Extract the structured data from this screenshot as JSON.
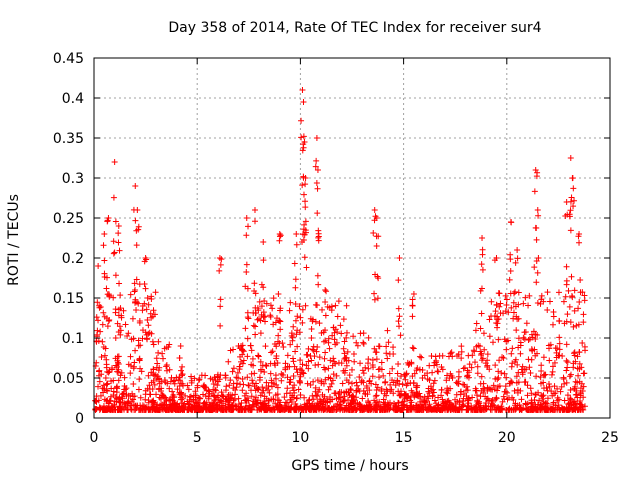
{
  "chart_data": {
    "type": "scatter",
    "title": "Day 358 of 2014, Rate Of TEC Index for receiver sur4",
    "xlabel": "GPS time / hours",
    "ylabel": "ROTI / TECUs",
    "xlim": [
      0,
      25
    ],
    "ylim": [
      0,
      0.45
    ],
    "x_ticks": [
      "0",
      "5",
      "10",
      "15",
      "20",
      "25"
    ],
    "y_ticks": [
      "0",
      "0.05",
      "0.1",
      "0.15",
      "0.2",
      "0.25",
      "0.3",
      "0.35",
      "0.4",
      "0.45"
    ],
    "grid": true,
    "marker": "plus",
    "color": "#ff0000",
    "series": [
      {
        "values_hint": "dense ROTI samples, ~0.01-0.05 baseline with spikes",
        "peaks": [
          {
            "x": 0.2,
            "y": 0.19
          },
          {
            "x": 0.5,
            "y": 0.23
          },
          {
            "x": 0.7,
            "y": 0.25
          },
          {
            "x": 1.0,
            "y": 0.32
          },
          {
            "x": 1.2,
            "y": 0.24
          },
          {
            "x": 2.0,
            "y": 0.29
          },
          {
            "x": 2.1,
            "y": 0.26
          },
          {
            "x": 2.5,
            "y": 0.2
          },
          {
            "x": 2.6,
            "y": 0.15
          },
          {
            "x": 4.2,
            "y": 0.09
          },
          {
            "x": 6.1,
            "y": 0.2
          },
          {
            "x": 7.0,
            "y": 0.09
          },
          {
            "x": 7.4,
            "y": 0.25
          },
          {
            "x": 7.8,
            "y": 0.26
          },
          {
            "x": 8.2,
            "y": 0.22
          },
          {
            "x": 9.0,
            "y": 0.23
          },
          {
            "x": 9.8,
            "y": 0.23
          },
          {
            "x": 10.1,
            "y": 0.41
          },
          {
            "x": 10.15,
            "y": 0.395
          },
          {
            "x": 10.2,
            "y": 0.345
          },
          {
            "x": 10.25,
            "y": 0.3
          },
          {
            "x": 10.8,
            "y": 0.35
          },
          {
            "x": 10.85,
            "y": 0.31
          },
          {
            "x": 11.2,
            "y": 0.16
          },
          {
            "x": 13.6,
            "y": 0.26
          },
          {
            "x": 13.7,
            "y": 0.25
          },
          {
            "x": 14.8,
            "y": 0.2
          },
          {
            "x": 15.5,
            "y": 0.155
          },
          {
            "x": 18.8,
            "y": 0.225
          },
          {
            "x": 19.5,
            "y": 0.2
          },
          {
            "x": 20.2,
            "y": 0.245
          },
          {
            "x": 20.5,
            "y": 0.21
          },
          {
            "x": 21.4,
            "y": 0.31
          },
          {
            "x": 21.5,
            "y": 0.26
          },
          {
            "x": 22.9,
            "y": 0.27
          },
          {
            "x": 23.1,
            "y": 0.325
          },
          {
            "x": 23.2,
            "y": 0.3
          },
          {
            "x": 23.5,
            "y": 0.23
          }
        ]
      }
    ]
  }
}
